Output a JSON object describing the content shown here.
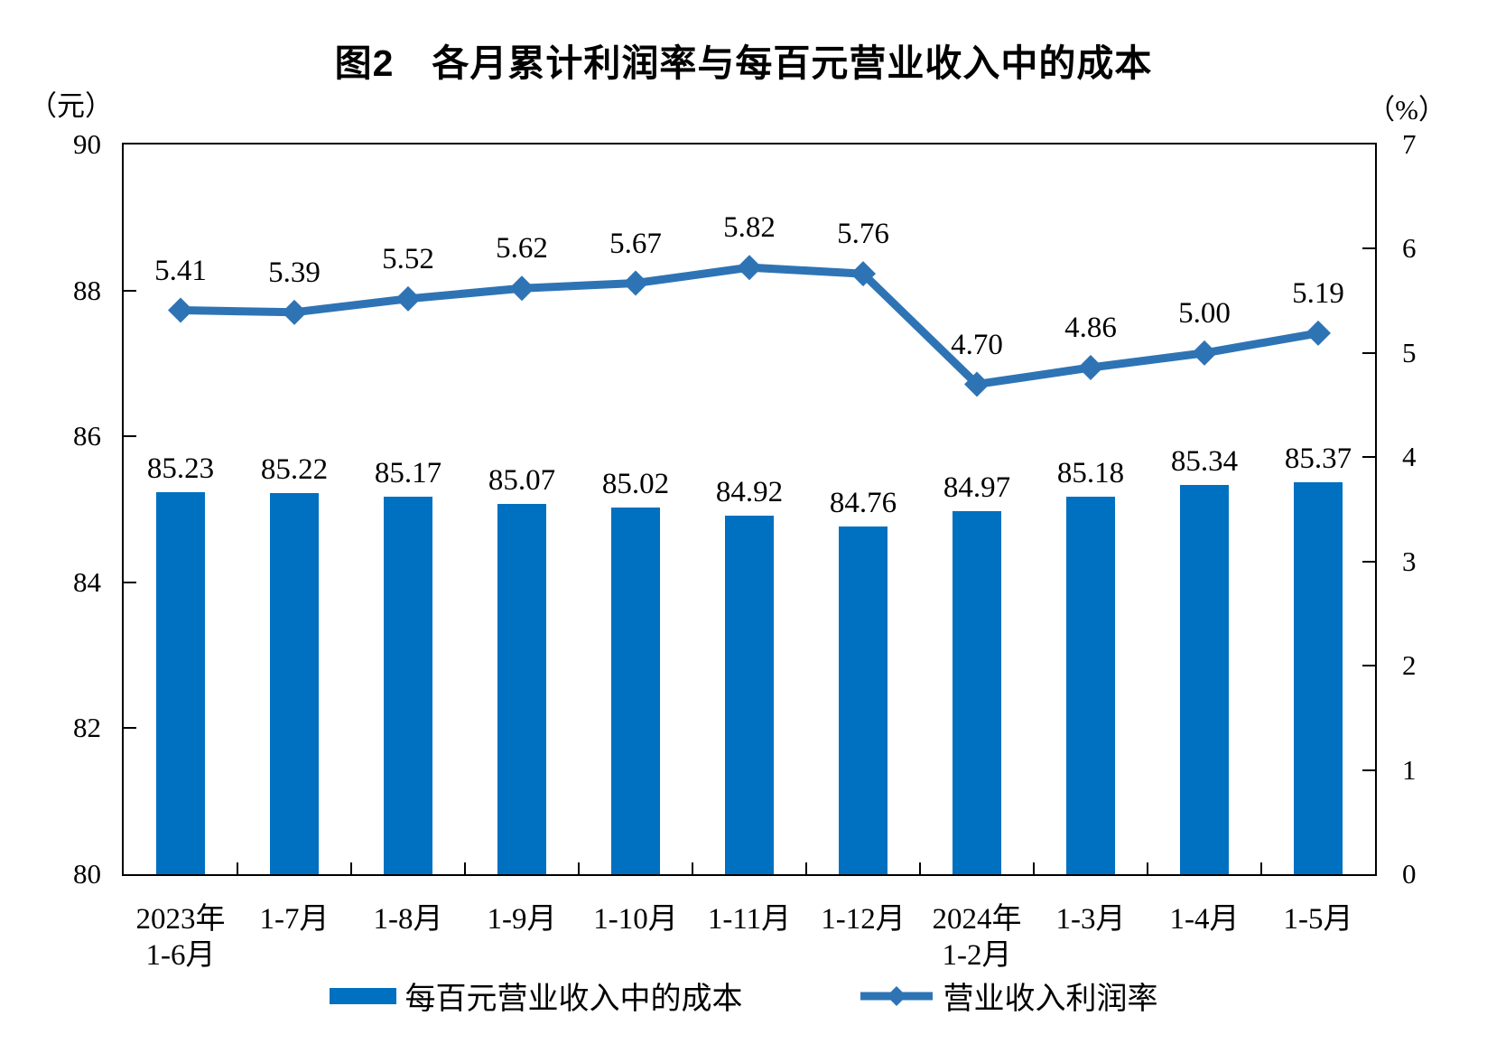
{
  "title": "图2　各月累计利润率与每百元营业收入中的成本",
  "colors": {
    "bar": "#0070C0",
    "line": "#2E74B5",
    "text": "#000000",
    "axis": "#000000"
  },
  "legend": {
    "bar_label": "每百元营业收入中的成本",
    "line_label": "营业收入利润率"
  },
  "chart_data": {
    "type": "combo",
    "subtype": "bar+line dual-axis",
    "title": "图2　各月累计利润率与每百元营业收入中的成本",
    "categories": [
      {
        "line1": "2023年",
        "line2": "1-6月"
      },
      {
        "line1": "1-7月",
        "line2": ""
      },
      {
        "line1": "1-8月",
        "line2": ""
      },
      {
        "line1": "1-9月",
        "line2": ""
      },
      {
        "line1": "1-10月",
        "line2": ""
      },
      {
        "line1": "1-11月",
        "line2": ""
      },
      {
        "line1": "1-12月",
        "line2": ""
      },
      {
        "line1": "2024年",
        "line2": "1-2月"
      },
      {
        "line1": "1-3月",
        "line2": ""
      },
      {
        "line1": "1-4月",
        "line2": ""
      },
      {
        "line1": "1-5月",
        "line2": ""
      }
    ],
    "series": [
      {
        "name": "每百元营业收入中的成本",
        "type": "bar",
        "axis": "left",
        "values": [
          85.23,
          85.22,
          85.17,
          85.07,
          85.02,
          84.92,
          84.76,
          84.97,
          85.18,
          85.34,
          85.37
        ]
      },
      {
        "name": "营业收入利润率",
        "type": "line",
        "axis": "right",
        "values": [
          5.41,
          5.39,
          5.52,
          5.62,
          5.67,
          5.82,
          5.76,
          4.7,
          4.86,
          5.0,
          5.19
        ]
      }
    ],
    "left_axis": {
      "label": "（元）",
      "ylim": [
        80,
        90
      ],
      "ticks": [
        90,
        88,
        86,
        84,
        82,
        80
      ]
    },
    "right_axis": {
      "label": "（%）",
      "ylim": [
        0,
        7
      ],
      "ticks": [
        7,
        6,
        5,
        4,
        3,
        2,
        1,
        0
      ]
    },
    "grid": false,
    "legend_position": "bottom"
  }
}
